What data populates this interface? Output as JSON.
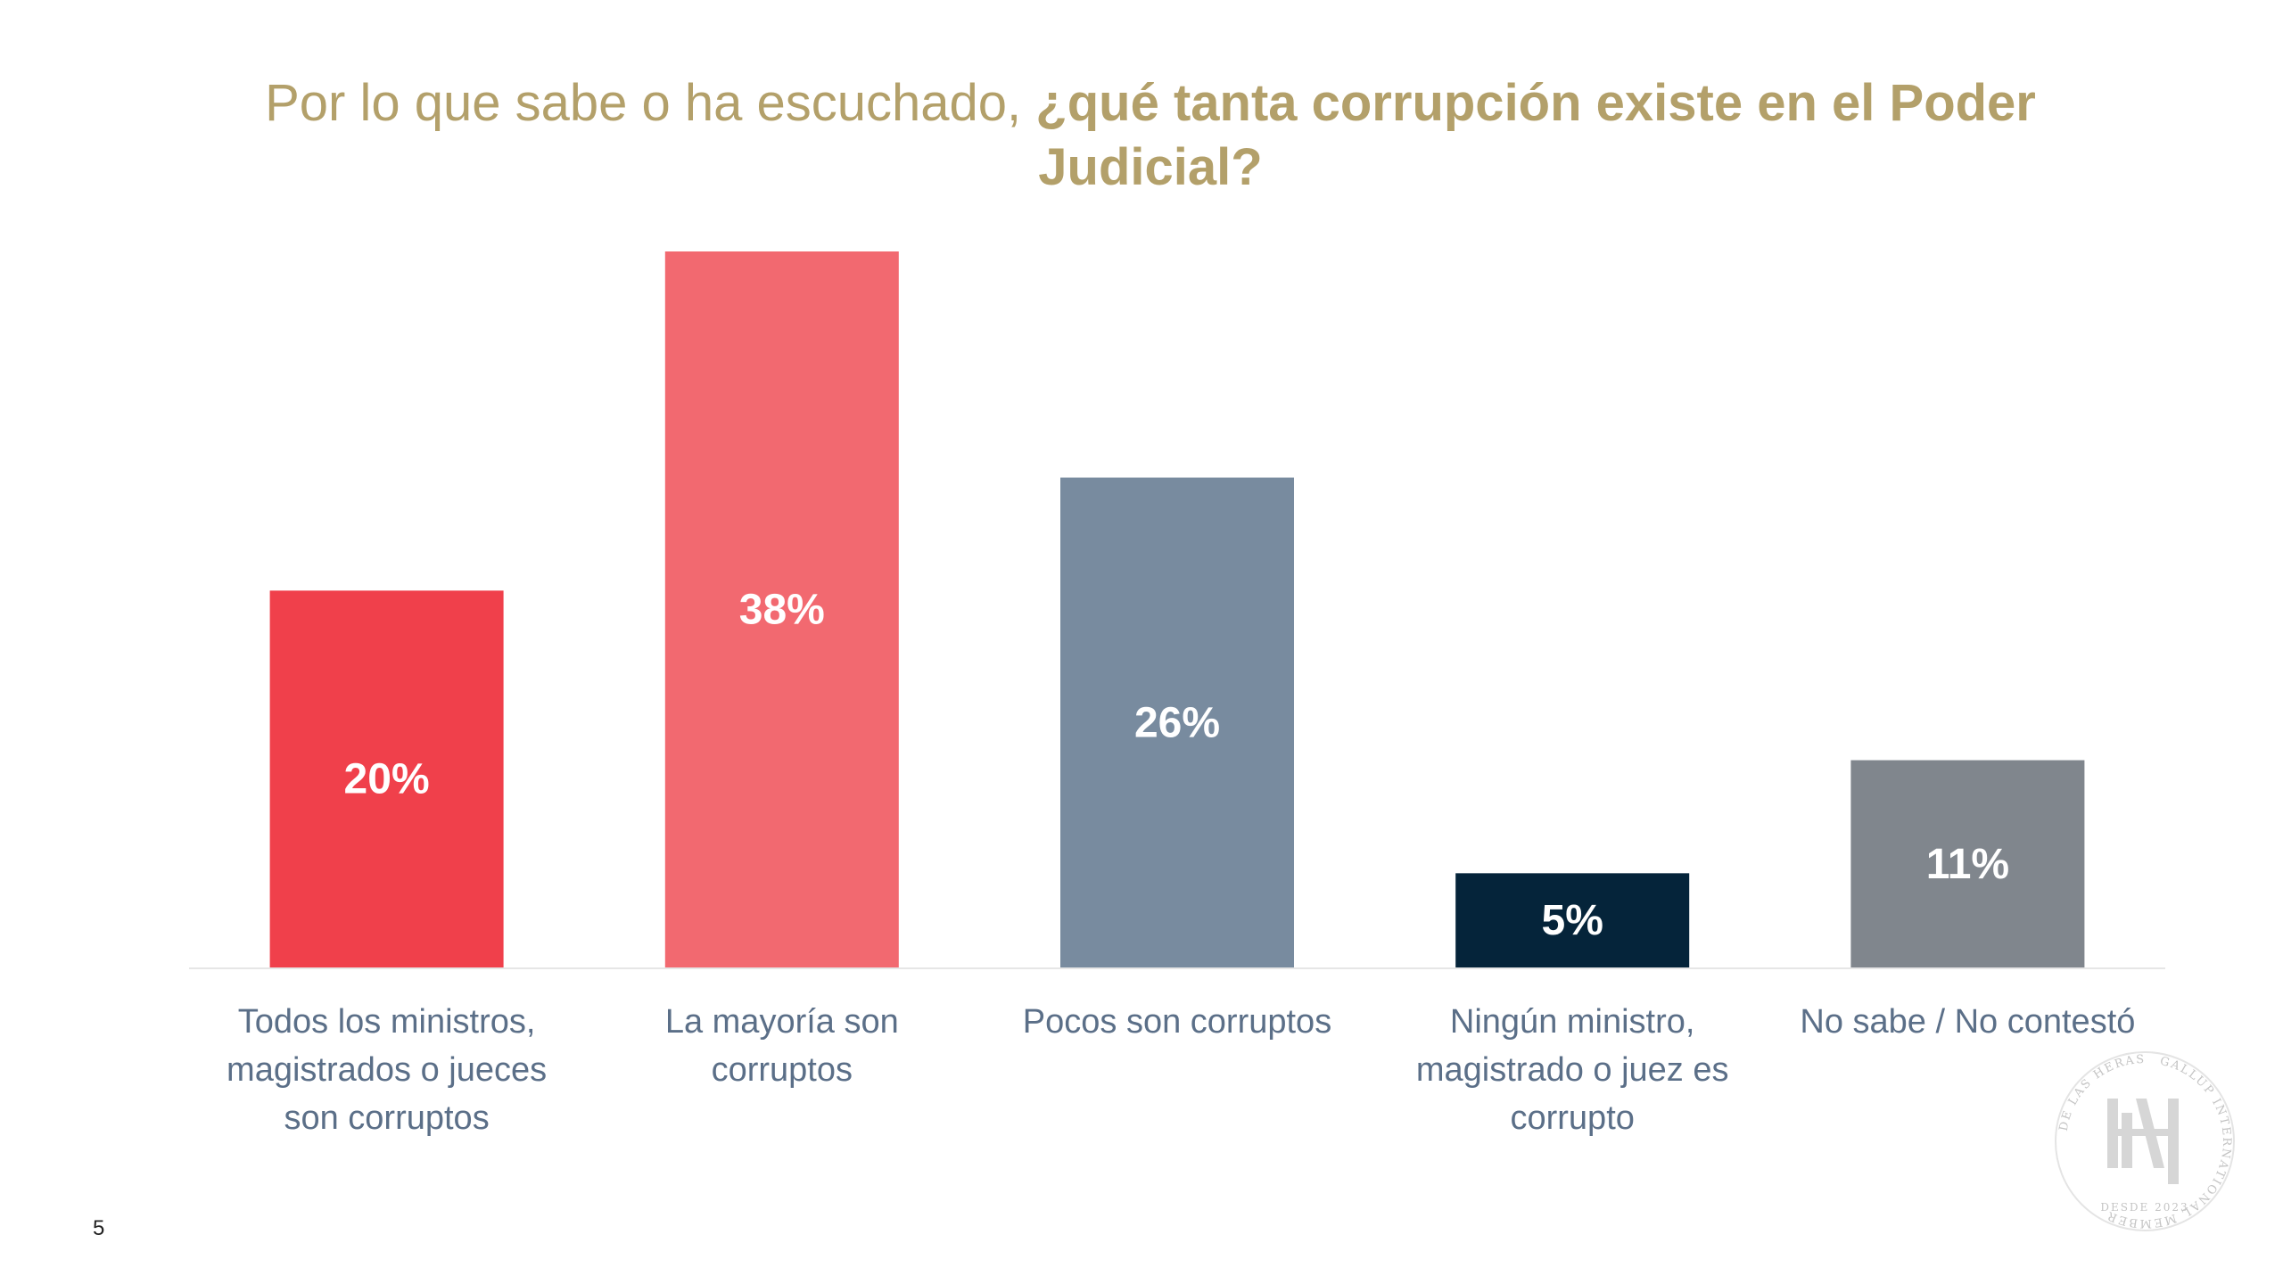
{
  "slide": {
    "title_lead": "Por lo que sabe o ha escuchado, ",
    "title_emph": "¿qué tanta corrupción existe en el Poder Judicial?",
    "page_number": "5",
    "seal_text_top": "GALLUP INTERNATIONAL MEMBER",
    "seal_text_left": "DE LAS HERAS",
    "seal_text_bottom": "DESDE 2023"
  },
  "colors": {
    "title": "#b3a06a",
    "axis_label": "#5b6f88",
    "data_label": "#ffffff",
    "baseline": "#e6e6e6"
  },
  "chart_data": {
    "type": "bar",
    "title": "Por lo que sabe o ha escuchado, ¿qué tanta corrupción existe en el Poder Judicial?",
    "categories": [
      [
        "Todos los ministros,",
        "magistrados o jueces",
        "son corruptos"
      ],
      [
        "La mayoría son",
        "corruptos"
      ],
      [
        "Pocos son corruptos"
      ],
      [
        "Ningún ministro,",
        "magistrado o juez es",
        "corrupto"
      ],
      [
        "No sabe / No contestó"
      ]
    ],
    "values": [
      20,
      38,
      26,
      5,
      11
    ],
    "data_labels": [
      "20%",
      "38%",
      "26%",
      "5%",
      "11%"
    ],
    "bar_colors": [
      "#f0404b",
      "#f26970",
      "#788b9f",
      "#05243a",
      "#80868d"
    ],
    "ylim": [
      0,
      38
    ],
    "grid": false,
    "legend": "none"
  }
}
